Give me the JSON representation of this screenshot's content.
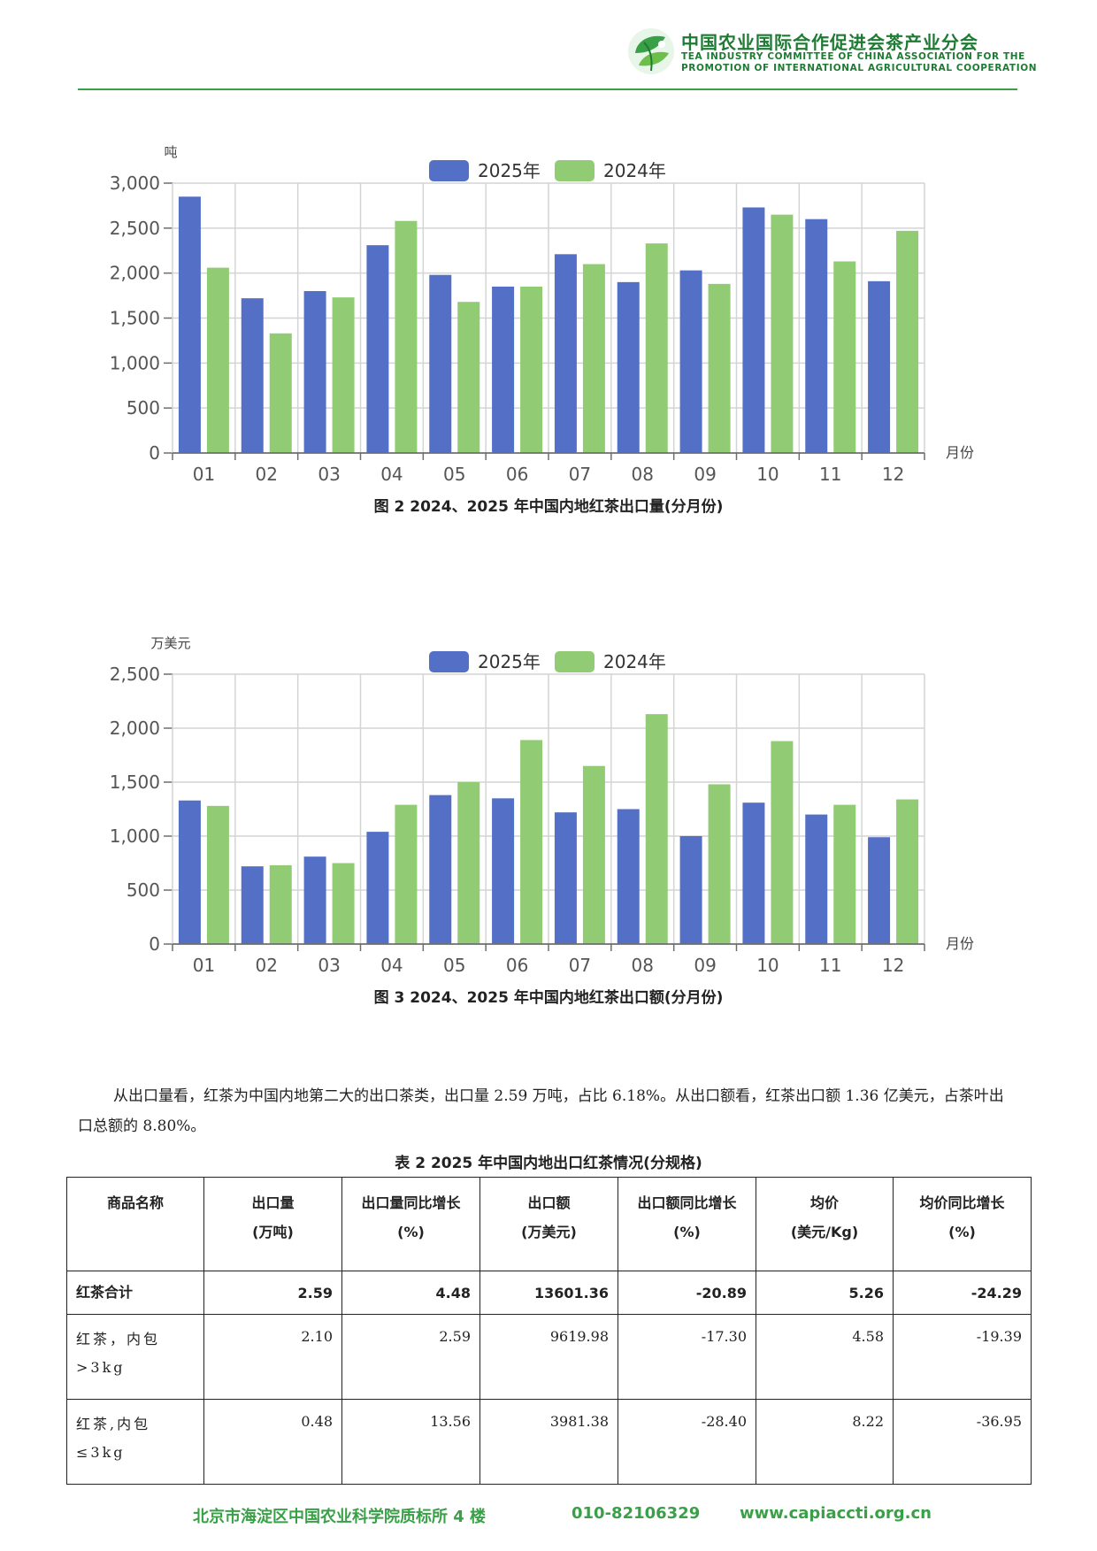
{
  "header": {
    "org_cn": "中国农业国际合作促进会茶产业分会",
    "org_en_line1": "TEA INDUSTRY COMMITTEE OF CHINA ASSOCIATION FOR THE",
    "org_en_line2": "PROMOTION OF INTERNATIONAL AGRICULTURAL COOPERATION"
  },
  "colors": {
    "series_2025": "#5470c6",
    "series_2024": "#91cc75",
    "brand_green": "#3aa047"
  },
  "chart_data": [
    {
      "type": "bar",
      "unit_label": "吨",
      "xlabel": "月份",
      "categories": [
        "01",
        "02",
        "03",
        "04",
        "05",
        "06",
        "07",
        "08",
        "09",
        "10",
        "11",
        "12"
      ],
      "series": [
        {
          "name": "2025年",
          "values": [
            2850,
            1720,
            1800,
            2310,
            1980,
            1850,
            2210,
            1900,
            2030,
            2730,
            2600,
            1910
          ]
        },
        {
          "name": "2024年",
          "values": [
            2060,
            1330,
            1730,
            2580,
            1680,
            1850,
            2100,
            2330,
            1880,
            2650,
            2130,
            2470
          ]
        }
      ],
      "ylim": [
        0,
        3000
      ],
      "yticks": [
        0,
        500,
        1000,
        1500,
        2000,
        2500,
        3000
      ],
      "ytick_labels": [
        "0",
        "500",
        "1,000",
        "1,500",
        "2,000",
        "2,500",
        "3,000"
      ],
      "grid": true,
      "legend_position": "top-center",
      "caption": "图 2  2024、2025 年中国内地红茶出口量(分月份)"
    },
    {
      "type": "bar",
      "unit_label": "万美元",
      "xlabel": "月份",
      "categories": [
        "01",
        "02",
        "03",
        "04",
        "05",
        "06",
        "07",
        "08",
        "09",
        "10",
        "11",
        "12"
      ],
      "series": [
        {
          "name": "2025年",
          "values": [
            1330,
            720,
            810,
            1040,
            1380,
            1350,
            1220,
            1250,
            1000,
            1310,
            1200,
            990
          ]
        },
        {
          "name": "2024年",
          "values": [
            1280,
            730,
            750,
            1290,
            1500,
            1890,
            1650,
            2130,
            1480,
            1880,
            1290,
            1340
          ]
        }
      ],
      "ylim": [
        0,
        2500
      ],
      "yticks": [
        0,
        500,
        1000,
        1500,
        2000,
        2500
      ],
      "ytick_labels": [
        "0",
        "500",
        "1,000",
        "1,500",
        "2,000",
        "2,500"
      ],
      "grid": true,
      "legend_position": "top-center",
      "caption": "图 3  2024、2025 年中国内地红茶出口额(分月份)"
    }
  ],
  "paragraph": "从出口量看，红茶为中国内地第二大的出口茶类，出口量 2.59 万吨，占比 6.18%。从出口额看，红茶出口额 1.36 亿美元，占茶叶出口总额的 8.80%。",
  "table": {
    "caption": "表 2  2025 年中国内地出口红茶情况(分规格)",
    "headers": [
      {
        "l1": "商品名称",
        "l2": ""
      },
      {
        "l1": "出口量",
        "l2": "(万吨)"
      },
      {
        "l1": "出口量同比增长",
        "l2": "(%)"
      },
      {
        "l1": "出口额",
        "l2": "(万美元)"
      },
      {
        "l1": "出口额同比增长",
        "l2": "(%)"
      },
      {
        "l1": "均价",
        "l2": "(美元/Kg)"
      },
      {
        "l1": "均价同比增长",
        "l2": "(%)"
      }
    ],
    "rows": [
      [
        "红茶合计",
        "2.59",
        "4.48",
        "13601.36",
        "-20.89",
        "5.26",
        "-24.29"
      ],
      [
        "红茶，内包>3kg",
        "2.10",
        "2.59",
        "9619.98",
        "-17.30",
        "4.58",
        "-19.39"
      ],
      [
        "红茶,内包≤3kg",
        "0.48",
        "13.56",
        "3981.38",
        "-28.40",
        "8.22",
        "-36.95"
      ]
    ]
  },
  "footer": {
    "address": "北京市海淀区中国农业科学院质标所 4 楼",
    "phone": "010-82106329",
    "website": "www.capiaccti.org.cn"
  }
}
